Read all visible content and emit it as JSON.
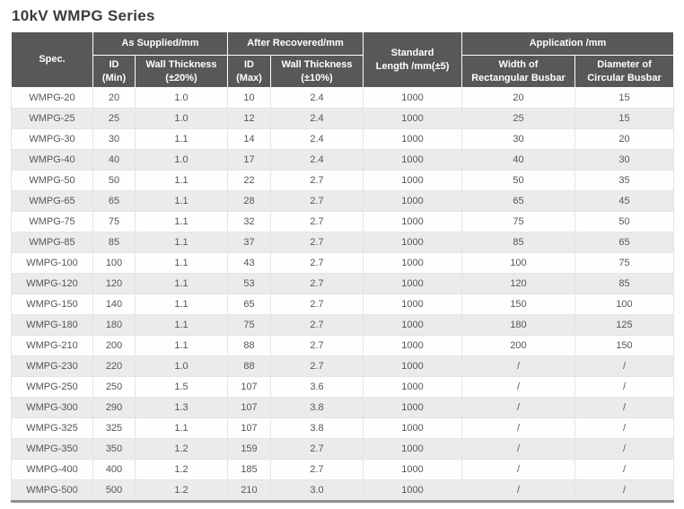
{
  "title": "10kV WMPG Series",
  "table": {
    "header": {
      "spec": "Spec.",
      "as_supplied": "As Supplied/mm",
      "after_recovered": "After Recovered/mm",
      "standard_length_line1": "Standard",
      "standard_length_line2": "Length /mm(±5)",
      "application": "Application /mm",
      "id_min_line1": "ID",
      "id_min_line2": "(Min)",
      "wt20_line1": "Wall Thickness",
      "wt20_line2": "(±20%)",
      "id_max_line1": "ID",
      "id_max_line2": "(Max)",
      "wt10_line1": "Wall Thickness",
      "wt10_line2": "(±10%)",
      "width_rect_line1": "Width of",
      "width_rect_line2": "Rectangular Busbar",
      "diam_circ_line1": "Diameter of",
      "diam_circ_line2": "Circular Busbar"
    },
    "column_keys": [
      "spec",
      "id_min",
      "wall_thickness_20",
      "id_max",
      "wall_thickness_10",
      "standard_length",
      "width_rect_busbar",
      "diameter_circ_busbar"
    ],
    "rows": [
      [
        "WMPG-20",
        "20",
        "1.0",
        "10",
        "2.4",
        "1000",
        "20",
        "15"
      ],
      [
        "WMPG-25",
        "25",
        "1.0",
        "12",
        "2.4",
        "1000",
        "25",
        "15"
      ],
      [
        "WMPG-30",
        "30",
        "1.1",
        "14",
        "2.4",
        "1000",
        "30",
        "20"
      ],
      [
        "WMPG-40",
        "40",
        "1.0",
        "17",
        "2.4",
        "1000",
        "40",
        "30"
      ],
      [
        "WMPG-50",
        "50",
        "1.1",
        "22",
        "2.7",
        "1000",
        "50",
        "35"
      ],
      [
        "WMPG-65",
        "65",
        "1.1",
        "28",
        "2.7",
        "1000",
        "65",
        "45"
      ],
      [
        "WMPG-75",
        "75",
        "1.1",
        "32",
        "2.7",
        "1000",
        "75",
        "50"
      ],
      [
        "WMPG-85",
        "85",
        "1.1",
        "37",
        "2.7",
        "1000",
        "85",
        "65"
      ],
      [
        "WMPG-100",
        "100",
        "1.1",
        "43",
        "2.7",
        "1000",
        "100",
        "75"
      ],
      [
        "WMPG-120",
        "120",
        "1.1",
        "53",
        "2.7",
        "1000",
        "120",
        "85"
      ],
      [
        "WMPG-150",
        "140",
        "1.1",
        "65",
        "2.7",
        "1000",
        "150",
        "100"
      ],
      [
        "WMPG-180",
        "180",
        "1.1",
        "75",
        "2.7",
        "1000",
        "180",
        "125"
      ],
      [
        "WMPG-210",
        "200",
        "1.1",
        "88",
        "2.7",
        "1000",
        "200",
        "150"
      ],
      [
        "WMPG-230",
        "220",
        "1.0",
        "88",
        "2.7",
        "1000",
        "/",
        "/"
      ],
      [
        "WMPG-250",
        "250",
        "1.5",
        "107",
        "3.6",
        "1000",
        "/",
        "/"
      ],
      [
        "WMPG-300",
        "290",
        "1.3",
        "107",
        "3.8",
        "1000",
        "/",
        "/"
      ],
      [
        "WMPG-325",
        "325",
        "1.1",
        "107",
        "3.8",
        "1000",
        "/",
        "/"
      ],
      [
        "WMPG-350",
        "350",
        "1.2",
        "159",
        "2.7",
        "1000",
        "/",
        "/"
      ],
      [
        "WMPG-400",
        "400",
        "1.2",
        "185",
        "2.7",
        "1000",
        "/",
        "/"
      ],
      [
        "WMPG-500",
        "500",
        "1.2",
        "210",
        "3.0",
        "1000",
        "/",
        "/"
      ]
    ],
    "colors": {
      "header_bg": "#5a5757",
      "header_text": "#ffffff",
      "row_alt_bg": "#ebebeb",
      "body_text": "#565656",
      "bottom_border": "#8f8f8f"
    }
  }
}
